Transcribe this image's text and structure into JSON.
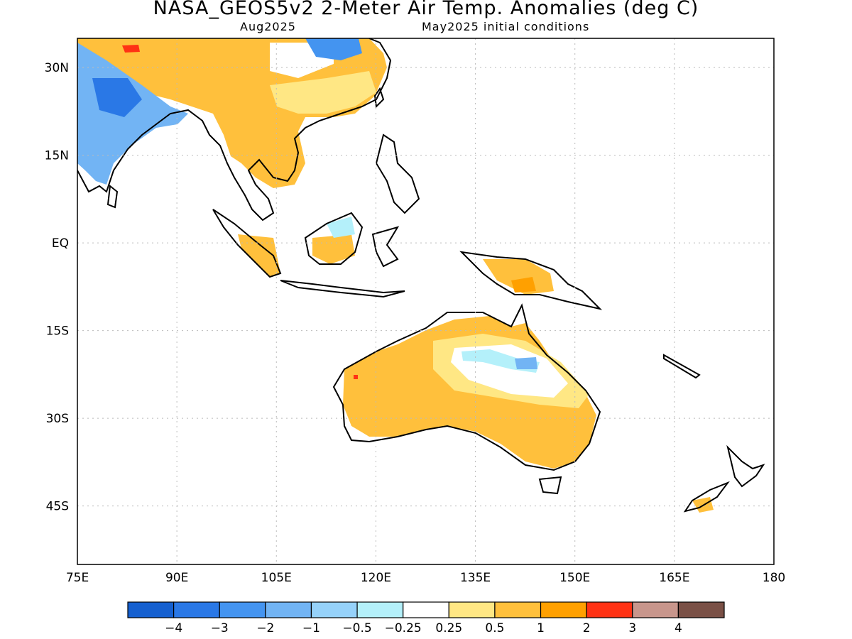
{
  "header": {
    "title": "NASA_GEOS5v2 2-Meter Air Temp. Anomalies (deg C)",
    "valid_month": "Aug2025",
    "init_conditions": "May2025 initial conditions"
  },
  "map": {
    "lon_range": [
      75,
      180
    ],
    "lat_range": [
      -55,
      35
    ],
    "lon_ticks": [
      "75E",
      "90E",
      "105E",
      "120E",
      "135E",
      "150E",
      "165E",
      "180"
    ],
    "lat_ticks": [
      "30N",
      "15N",
      "EQ",
      "15S",
      "30S",
      "45S"
    ],
    "grid": true
  },
  "colorbar": {
    "labels": [
      "-4",
      "-3",
      "-2",
      "-1",
      "-0.5",
      "-0.25",
      "0.25",
      "0.5",
      "1",
      "2",
      "3",
      "4"
    ],
    "colors": [
      "#1560d0",
      "#2a78e6",
      "#4494f0",
      "#72b4f4",
      "#96d2fa",
      "#b4f0fa",
      "#ffffff",
      "#ffe784",
      "#ffc03c",
      "#ffa000",
      "#ff3214",
      "#c8968c",
      "#7a5046"
    ]
  },
  "regions": [
    {
      "name": "india-cold",
      "color": "#72b4f4"
    },
    {
      "name": "southeast-asia-warm",
      "color": "#ffc03c"
    },
    {
      "name": "australia-warm",
      "color": "#ffc03c"
    },
    {
      "name": "australia-cool",
      "color": "#b4f0fa"
    }
  ]
}
